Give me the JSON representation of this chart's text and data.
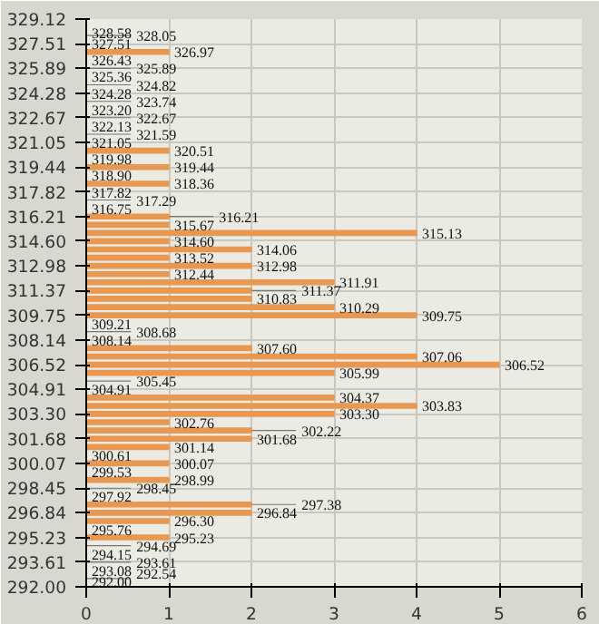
{
  "chart_data": {
    "type": "bar",
    "orientation": "horizontal",
    "color": "#e89850",
    "x": [
      292.0,
      292.54,
      293.08,
      293.61,
      294.15,
      294.69,
      295.23,
      295.76,
      296.3,
      296.84,
      297.38,
      297.92,
      298.45,
      298.99,
      299.53,
      300.07,
      300.61,
      301.14,
      301.68,
      302.22,
      302.76,
      303.3,
      303.83,
      304.37,
      304.91,
      305.45,
      305.99,
      306.52,
      307.06,
      307.6,
      308.14,
      308.68,
      309.21,
      309.75,
      310.29,
      310.83,
      311.37,
      311.91,
      312.44,
      312.98,
      313.52,
      314.06,
      314.6,
      315.13,
      315.67,
      316.21,
      316.75,
      317.29,
      317.82,
      318.36,
      318.9,
      319.44,
      319.98,
      320.51,
      321.05,
      321.59,
      322.13,
      322.67,
      323.2,
      323.74,
      324.28,
      324.82,
      325.36,
      325.89,
      326.43,
      326.97,
      327.51,
      328.05,
      328.58
    ],
    "values": [
      0,
      0,
      0,
      0,
      0,
      0,
      1,
      0,
      1,
      2,
      2,
      0,
      0,
      1,
      0,
      1,
      0,
      1,
      2,
      2,
      1,
      3,
      4,
      3,
      0,
      0,
      3,
      5,
      4,
      2,
      0,
      0,
      0,
      4,
      3,
      2,
      2,
      3,
      1,
      2,
      1,
      2,
      1,
      4,
      1,
      1,
      0,
      0,
      0,
      1,
      0,
      1,
      0,
      1,
      0,
      0,
      0,
      0,
      0,
      0,
      0,
      0,
      0,
      0,
      0,
      1,
      0,
      0,
      0
    ],
    "annotations": [
      {
        "text": "292.00",
        "x": 0,
        "y": 292.0
      },
      {
        "text": "292.54",
        "x": 0,
        "y": 292.54
      },
      {
        "text": "293.08",
        "x": 0,
        "y": 293.08
      },
      {
        "text": "293.61",
        "x": 0,
        "y": 293.61
      },
      {
        "text": "294.15",
        "x": 0,
        "y": 294.15
      },
      {
        "text": "294.69",
        "x": 0,
        "y": 294.69
      },
      {
        "text": "295.23",
        "x": 1,
        "y": 295.23
      },
      {
        "text": "295.76",
        "x": 0,
        "y": 295.76
      },
      {
        "text": "296.30",
        "x": 1,
        "y": 296.3
      },
      {
        "text": "296.84",
        "x": 2,
        "y": 296.84
      },
      {
        "text": "297.38",
        "x": 2,
        "y": 297.38
      },
      {
        "text": "297.92",
        "x": 0,
        "y": 297.92
      },
      {
        "text": "298.45",
        "x": 0,
        "y": 298.45
      },
      {
        "text": "298.99",
        "x": 1,
        "y": 298.99
      },
      {
        "text": "299.53",
        "x": 0,
        "y": 299.53
      },
      {
        "text": "300.07",
        "x": 1,
        "y": 300.07
      },
      {
        "text": "300.61",
        "x": 0,
        "y": 300.61
      },
      {
        "text": "301.14",
        "x": 1,
        "y": 301.14
      },
      {
        "text": "301.68",
        "x": 2,
        "y": 301.68
      },
      {
        "text": "302.22",
        "x": 2,
        "y": 302.22
      },
      {
        "text": "302.76",
        "x": 1,
        "y": 302.76
      },
      {
        "text": "303.30",
        "x": 3,
        "y": 303.3
      },
      {
        "text": "303.83",
        "x": 4,
        "y": 303.83
      },
      {
        "text": "304.37",
        "x": 3,
        "y": 304.37
      },
      {
        "text": "304.91",
        "x": 0,
        "y": 304.91
      },
      {
        "text": "305.45",
        "x": 0,
        "y": 305.45
      },
      {
        "text": "305.99",
        "x": 3,
        "y": 305.99
      },
      {
        "text": "306.52",
        "x": 5,
        "y": 306.52
      },
      {
        "text": "307.06",
        "x": 4,
        "y": 307.06
      },
      {
        "text": "307.60",
        "x": 2,
        "y": 307.6
      },
      {
        "text": "308.14",
        "x": 0,
        "y": 308.14
      },
      {
        "text": "308.68",
        "x": 0,
        "y": 308.68
      },
      {
        "text": "309.21",
        "x": 0,
        "y": 309.21
      },
      {
        "text": "309.75",
        "x": 4,
        "y": 309.75
      },
      {
        "text": "310.29",
        "x": 3,
        "y": 310.29
      },
      {
        "text": "310.83",
        "x": 2,
        "y": 310.83
      },
      {
        "text": "311.37",
        "x": 2,
        "y": 311.37
      },
      {
        "text": "311.91",
        "x": 3,
        "y": 311.91
      },
      {
        "text": "312.44",
        "x": 1,
        "y": 312.44
      },
      {
        "text": "312.98",
        "x": 2,
        "y": 312.98
      },
      {
        "text": "313.52",
        "x": 1,
        "y": 313.52
      },
      {
        "text": "314.06",
        "x": 2,
        "y": 314.06
      },
      {
        "text": "314.60",
        "x": 1,
        "y": 314.6
      },
      {
        "text": "315.13",
        "x": 4,
        "y": 315.13
      },
      {
        "text": "315.67",
        "x": 1,
        "y": 315.67
      },
      {
        "text": "316.21",
        "x": 1,
        "y": 316.21
      },
      {
        "text": "316.75",
        "x": 0,
        "y": 316.75
      },
      {
        "text": "317.29",
        "x": 0,
        "y": 317.29
      },
      {
        "text": "317.82",
        "x": 0,
        "y": 317.82
      },
      {
        "text": "318.36",
        "x": 1,
        "y": 318.36
      },
      {
        "text": "318.90",
        "x": 0,
        "y": 318.9
      },
      {
        "text": "319.44",
        "x": 1,
        "y": 319.44
      },
      {
        "text": "319.98",
        "x": 0,
        "y": 319.98
      },
      {
        "text": "320.51",
        "x": 1,
        "y": 320.51
      },
      {
        "text": "321.05",
        "x": 0,
        "y": 321.05
      },
      {
        "text": "321.59",
        "x": 0,
        "y": 321.59
      },
      {
        "text": "322.13",
        "x": 0,
        "y": 322.13
      },
      {
        "text": "322.67",
        "x": 0,
        "y": 322.67
      },
      {
        "text": "323.20",
        "x": 0,
        "y": 323.2
      },
      {
        "text": "323.74",
        "x": 0,
        "y": 323.74
      },
      {
        "text": "324.28",
        "x": 0,
        "y": 324.28
      },
      {
        "text": "324.82",
        "x": 0,
        "y": 324.82
      },
      {
        "text": "325.36",
        "x": 0,
        "y": 325.36
      },
      {
        "text": "325.89",
        "x": 0,
        "y": 325.89
      },
      {
        "text": "326.43",
        "x": 0,
        "y": 326.43
      },
      {
        "text": "326.97",
        "x": 1,
        "y": 326.97
      },
      {
        "text": "327.51",
        "x": 0,
        "y": 327.51
      },
      {
        "text": "328.05",
        "x": 0,
        "y": 328.05
      },
      {
        "text": "328.58",
        "x": 0,
        "y": 328.58
      }
    ],
    "xlim": [
      0,
      6
    ],
    "xticks": [
      0,
      1,
      2,
      3,
      4,
      5,
      6
    ],
    "ylim": [
      292.0,
      329.12
    ],
    "yticks": [
      {
        "value": 292.0,
        "label": "292.00"
      },
      {
        "value": 293.61,
        "label": "293.61"
      },
      {
        "value": 295.23,
        "label": "295.23"
      },
      {
        "value": 296.84,
        "label": "296.84"
      },
      {
        "value": 298.45,
        "label": "298.45"
      },
      {
        "value": 300.07,
        "label": "300.07"
      },
      {
        "value": 301.68,
        "label": "301.68"
      },
      {
        "value": 303.3,
        "label": "303.30"
      },
      {
        "value": 304.91,
        "label": "304.91"
      },
      {
        "value": 306.52,
        "label": "306.52"
      },
      {
        "value": 308.14,
        "label": "308.14"
      },
      {
        "value": 309.75,
        "label": "309.75"
      },
      {
        "value": 311.37,
        "label": "311.37"
      },
      {
        "value": 312.98,
        "label": "312.98"
      },
      {
        "value": 314.6,
        "label": "314.60"
      },
      {
        "value": 316.21,
        "label": "316.21"
      },
      {
        "value": 317.82,
        "label": "317.82"
      },
      {
        "value": 319.44,
        "label": "319.44"
      },
      {
        "value": 321.05,
        "label": "321.05"
      },
      {
        "value": 322.67,
        "label": "322.67"
      },
      {
        "value": 324.28,
        "label": "324.28"
      },
      {
        "value": 325.89,
        "label": "325.89"
      },
      {
        "value": 327.51,
        "label": "327.51"
      },
      {
        "value": 329.12,
        "label": "329.12"
      }
    ],
    "grid": true
  }
}
